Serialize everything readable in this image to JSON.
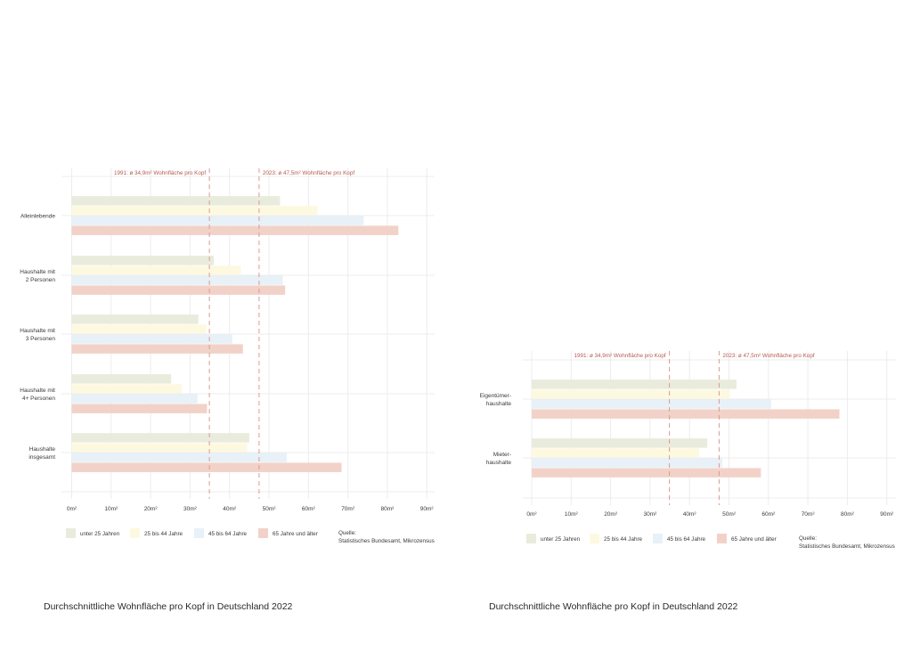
{
  "colors": {
    "unter_25": "#e9ecdd",
    "25_44": "#fdf9e1",
    "45_64": "#e7f1f7",
    "65_plus": "#f2d2c8",
    "reference_line": "#d99a94",
    "reference_text": "#b65a4f",
    "grid": "#ececec",
    "text": "#3a3a3a"
  },
  "chart_data": [
    {
      "type": "bar",
      "orientation": "horizontal",
      "title": "Durchschnittliche Wohnfläche pro Kopf in Deutschland 2022",
      "categories": [
        "Alleinlebende",
        "Haushalte mit\n2 Personen",
        "Haushalte mit\n3 Personen",
        "Haushalte mit\n4+ Personen",
        "Haushalte\ninsgesamt"
      ],
      "series": [
        {
          "name": "unter 25 Jahren",
          "color_key": "unter_25",
          "values": [
            52.8,
            36.0,
            32.1,
            25.2,
            45.0
          ]
        },
        {
          "name": "25 bis 44 Jahre",
          "color_key": "25_44",
          "values": [
            62.3,
            42.9,
            34.1,
            27.9,
            44.5
          ]
        },
        {
          "name": "45 bis 64 Jahre",
          "color_key": "45_64",
          "values": [
            74.0,
            53.5,
            40.7,
            31.9,
            54.5
          ]
        },
        {
          "name": "65 Jahre und älter",
          "color_key": "65_plus",
          "values": [
            82.8,
            54.1,
            43.4,
            34.3,
            68.4
          ]
        }
      ],
      "xlim": [
        0,
        90
      ],
      "xticks": [
        0,
        10,
        20,
        30,
        40,
        50,
        60,
        70,
        80,
        90
      ],
      "xtick_labels": [
        "0m²",
        "10m²",
        "20m²",
        "30m²",
        "40m²",
        "50m²",
        "60m²",
        "70m²",
        "80m²",
        "90m²"
      ],
      "reference_lines": [
        {
          "value": 34.9,
          "label": "1991: ø 34,9m² Wohnfläche pro Kopf",
          "label_side": "left"
        },
        {
          "value": 47.5,
          "label": "2023: ø 47,5m² Wohnfläche pro Kopf",
          "label_side": "right"
        }
      ],
      "legend": [
        "unter 25 Jahren",
        "25 bis 44 Jahre",
        "45 bis 64 Jahre",
        "65 Jahre und älter"
      ],
      "legend_placement": "bottom",
      "source": [
        "Quelle:",
        "Statistisches Bundesamt, Mikrozensus"
      ],
      "grid": true
    },
    {
      "type": "bar",
      "orientation": "horizontal",
      "title": "Durchschnittliche Wohnfläche pro Kopf in Deutschland 2022",
      "categories": [
        "Eigentümer-\nhaushalte",
        "Mieter-\nhaushalte"
      ],
      "series": [
        {
          "name": "unter 25 Jahren",
          "color_key": "unter_25",
          "values": [
            51.9,
            44.5
          ]
        },
        {
          "name": "25 bis 44 Jahre",
          "color_key": "25_44",
          "values": [
            50.2,
            42.4
          ]
        },
        {
          "name": "45 bis 64 Jahre",
          "color_key": "45_64",
          "values": [
            60.7,
            48.3
          ]
        },
        {
          "name": "65 Jahre und älter",
          "color_key": "65_plus",
          "values": [
            78.0,
            58.1
          ]
        }
      ],
      "xlim": [
        0,
        90
      ],
      "xticks": [
        0,
        10,
        20,
        30,
        40,
        50,
        60,
        70,
        80,
        90
      ],
      "xtick_labels": [
        "0m²",
        "10m²",
        "20m²",
        "30m²",
        "40m²",
        "50m²",
        "60m²",
        "70m²",
        "80m²",
        "90m²"
      ],
      "reference_lines": [
        {
          "value": 34.9,
          "label": "1991: ø 34,9m² Wohnfläche pro Kopf",
          "label_side": "left"
        },
        {
          "value": 47.5,
          "label": "2023: ø 47,5m² Wohnfläche pro Kopf",
          "label_side": "right"
        }
      ],
      "legend": [
        "unter 25 Jahren",
        "25 bis 44 Jahre",
        "45 bis 64 Jahre",
        "65 Jahre und älter"
      ],
      "legend_placement": "bottom",
      "source": [
        "Quelle:",
        "Statistisches Bundesamt, Mikrozensus"
      ],
      "grid": true
    }
  ]
}
